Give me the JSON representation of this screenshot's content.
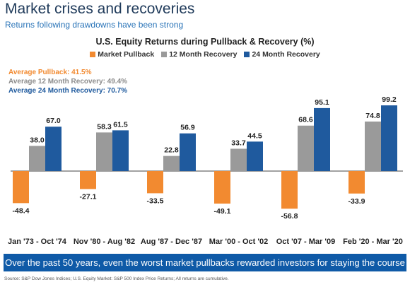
{
  "header": {
    "title": "Market crises and recoveries",
    "subtitle": "Returns following drawdowns have been strong"
  },
  "averages": {
    "pullback": "Average Pullback: 41.5%",
    "recovery_12m": "Average 12 Month Recovery: 49.4%",
    "recovery_24m": "Average 24 Month Recovery: 70.7%"
  },
  "banner": "Over the past 50 years, even the worst market pullbacks rewarded investors for staying the course",
  "footnote": "Source: S&P Dow Jones Indices; U.S. Equity Market: S&P 500 Index Price Returns; All returns are cumulative.",
  "colors": {
    "pullback": "#f28a30",
    "recovery_12m": "#9a9a9a",
    "recovery_24m": "#1f5a9e",
    "banner": "#0f5aa7"
  },
  "chart_data": {
    "type": "bar",
    "title": "U.S. Equity Returns during Pullback & Recovery (%)",
    "categories": [
      "Jan '73 - Oct '74",
      "Nov '80 - Aug '82",
      "Aug '87 - Dec '87",
      "Mar '00 - Oct '02",
      "Oct '07 - Mar '09",
      "Feb '20 - Mar '20"
    ],
    "series": [
      {
        "name": "Market Pullback",
        "values": [
          -48.4,
          -27.1,
          -33.5,
          -49.1,
          -56.8,
          -33.9
        ]
      },
      {
        "name": "12 Month Recovery",
        "values": [
          38.0,
          58.3,
          22.8,
          33.7,
          68.6,
          74.8
        ]
      },
      {
        "name": "24 Month Recovery",
        "values": [
          67.0,
          61.5,
          56.9,
          44.5,
          95.1,
          99.2
        ]
      }
    ],
    "ylim": [
      -60,
      110
    ],
    "grid": false,
    "legend": "top"
  }
}
